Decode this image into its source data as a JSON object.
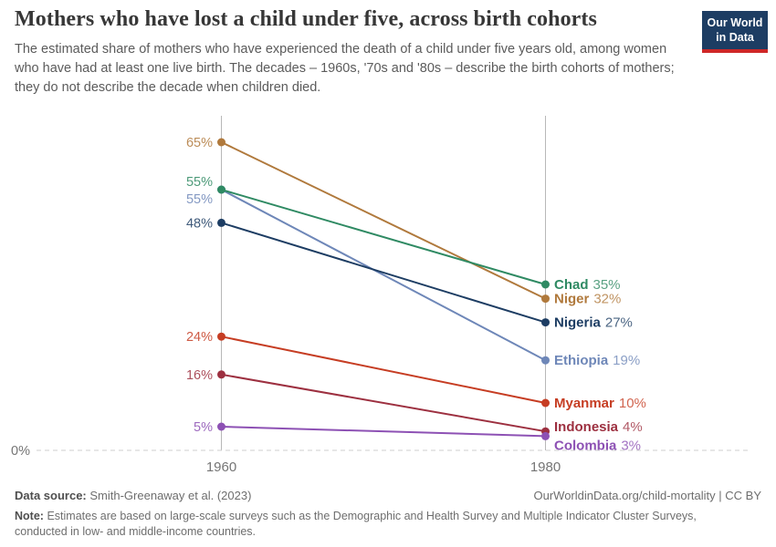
{
  "header": {
    "title": "Mothers who have lost a child under five, across birth cohorts",
    "subtitle": "The estimated share of mothers who have experienced the death of a child under five years old, among women who have had at least one live birth. The decades – 1960s, '70s and '80s – describe the birth cohorts of mothers; they do not describe the decade when children died.",
    "logo": {
      "line1": "Our World",
      "line2": "in Data",
      "bg_color": "#1d3d63",
      "bar_color": "#ce2727"
    }
  },
  "chart_data": {
    "type": "line",
    "subtype": "slope-chart",
    "x": [
      1960,
      1980
    ],
    "x_tick_labels": [
      "1960",
      "1980"
    ],
    "ylim": [
      0,
      68
    ],
    "baseline_label": "0%",
    "grid": "dashed-zero-baseline-only",
    "legend_position": "labels-at-line-ends",
    "series": [
      {
        "name": "Niger",
        "values": [
          65,
          32
        ],
        "color": "#b0793c",
        "label_dy_start": 0,
        "label_dy_end": 0
      },
      {
        "name": "Ethiopia",
        "values": [
          55,
          19
        ],
        "color": "#6e87b8",
        "label_dy_start": 10,
        "label_dy_end": 0
      },
      {
        "name": "Nigeria",
        "values": [
          48,
          27
        ],
        "color": "#1d3d63",
        "label_dy_start": 0,
        "label_dy_end": 0
      },
      {
        "name": "Chad",
        "values": [
          55,
          35
        ],
        "color": "#2f8a63",
        "label_dy_start": -9,
        "label_dy_end": 0
      },
      {
        "name": "Myanmar",
        "values": [
          24,
          10
        ],
        "color": "#c63d23",
        "label_dy_start": 0,
        "label_dy_end": 0
      },
      {
        "name": "Indonesia",
        "values": [
          16,
          4
        ],
        "color": "#9d3040",
        "label_dy_start": 0,
        "label_dy_end": -5
      },
      {
        "name": "Colombia",
        "values": [
          5,
          3
        ],
        "color": "#8d51b4",
        "label_dy_start": 0,
        "label_dy_end": 10
      }
    ]
  },
  "footer": {
    "datasource_label": "Data source:",
    "datasource_value": "Smith-Greenaway et al. (2023)",
    "link": "OurWorldinData.org/child-mortality | CC BY",
    "note_label": "Note:",
    "note_value": "Estimates are based on large-scale surveys such as the Demographic and Health Survey and Multiple Indicator Cluster Surveys, conducted in low- and middle-income countries."
  }
}
